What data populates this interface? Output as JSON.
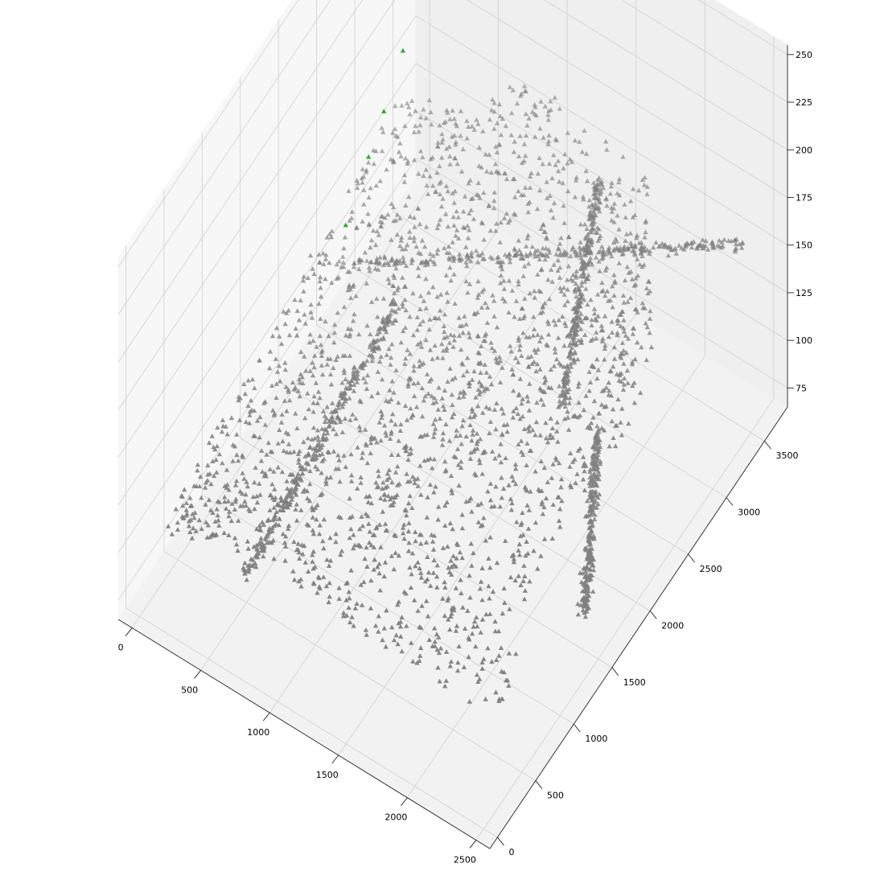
{
  "chart_data": {
    "type": "scatter",
    "projection": "3d",
    "title": "",
    "xlabel": "",
    "ylabel": "",
    "zlabel": "",
    "xlim": [
      -100,
      2600
    ],
    "ylim": [
      -100,
      3800
    ],
    "zlim": [
      65,
      255
    ],
    "x_ticks": [
      "0",
      "500",
      "1000",
      "1500",
      "2000",
      "2500"
    ],
    "y_ticks": [
      "0",
      "500",
      "1000",
      "1500",
      "2000",
      "2500",
      "3000",
      "3500"
    ],
    "z_ticks": [
      "75",
      "100",
      "125",
      "150",
      "175",
      "200",
      "225",
      "250"
    ],
    "grid": true,
    "legend": "none",
    "marker": "triangle",
    "series": [
      {
        "color": "#808080",
        "point_count": "approximately 4000",
        "description_of_values": "x from 0 to about 2500, y from about 300 to about 3700, z from about 85 to about 175",
        "ridges": [
          {
            "from": [
              0,
              2600,
              95
            ],
            "to": [
              2500,
              3400,
              170
            ]
          },
          {
            "from": [
              600,
              2300,
              120
            ],
            "to": [
              600,
              300,
              95
            ]
          },
          {
            "from": [
              1400,
              3500,
              150
            ],
            "to": [
              1800,
              2300,
              120
            ]
          },
          {
            "from": [
              2000,
              2400,
              110
            ],
            "to": [
              2400,
              1500,
              85
            ]
          }
        ]
      },
      {
        "color": "#2ca02c",
        "points": [
          {
            "x": 0,
            "y": 3450,
            "z": 157
          },
          {
            "x": 0,
            "y": 3200,
            "z": 140
          },
          {
            "x": 0,
            "y": 3000,
            "z": 128
          },
          {
            "x": 0,
            "y": 2700,
            "z": 110
          }
        ]
      }
    ]
  }
}
